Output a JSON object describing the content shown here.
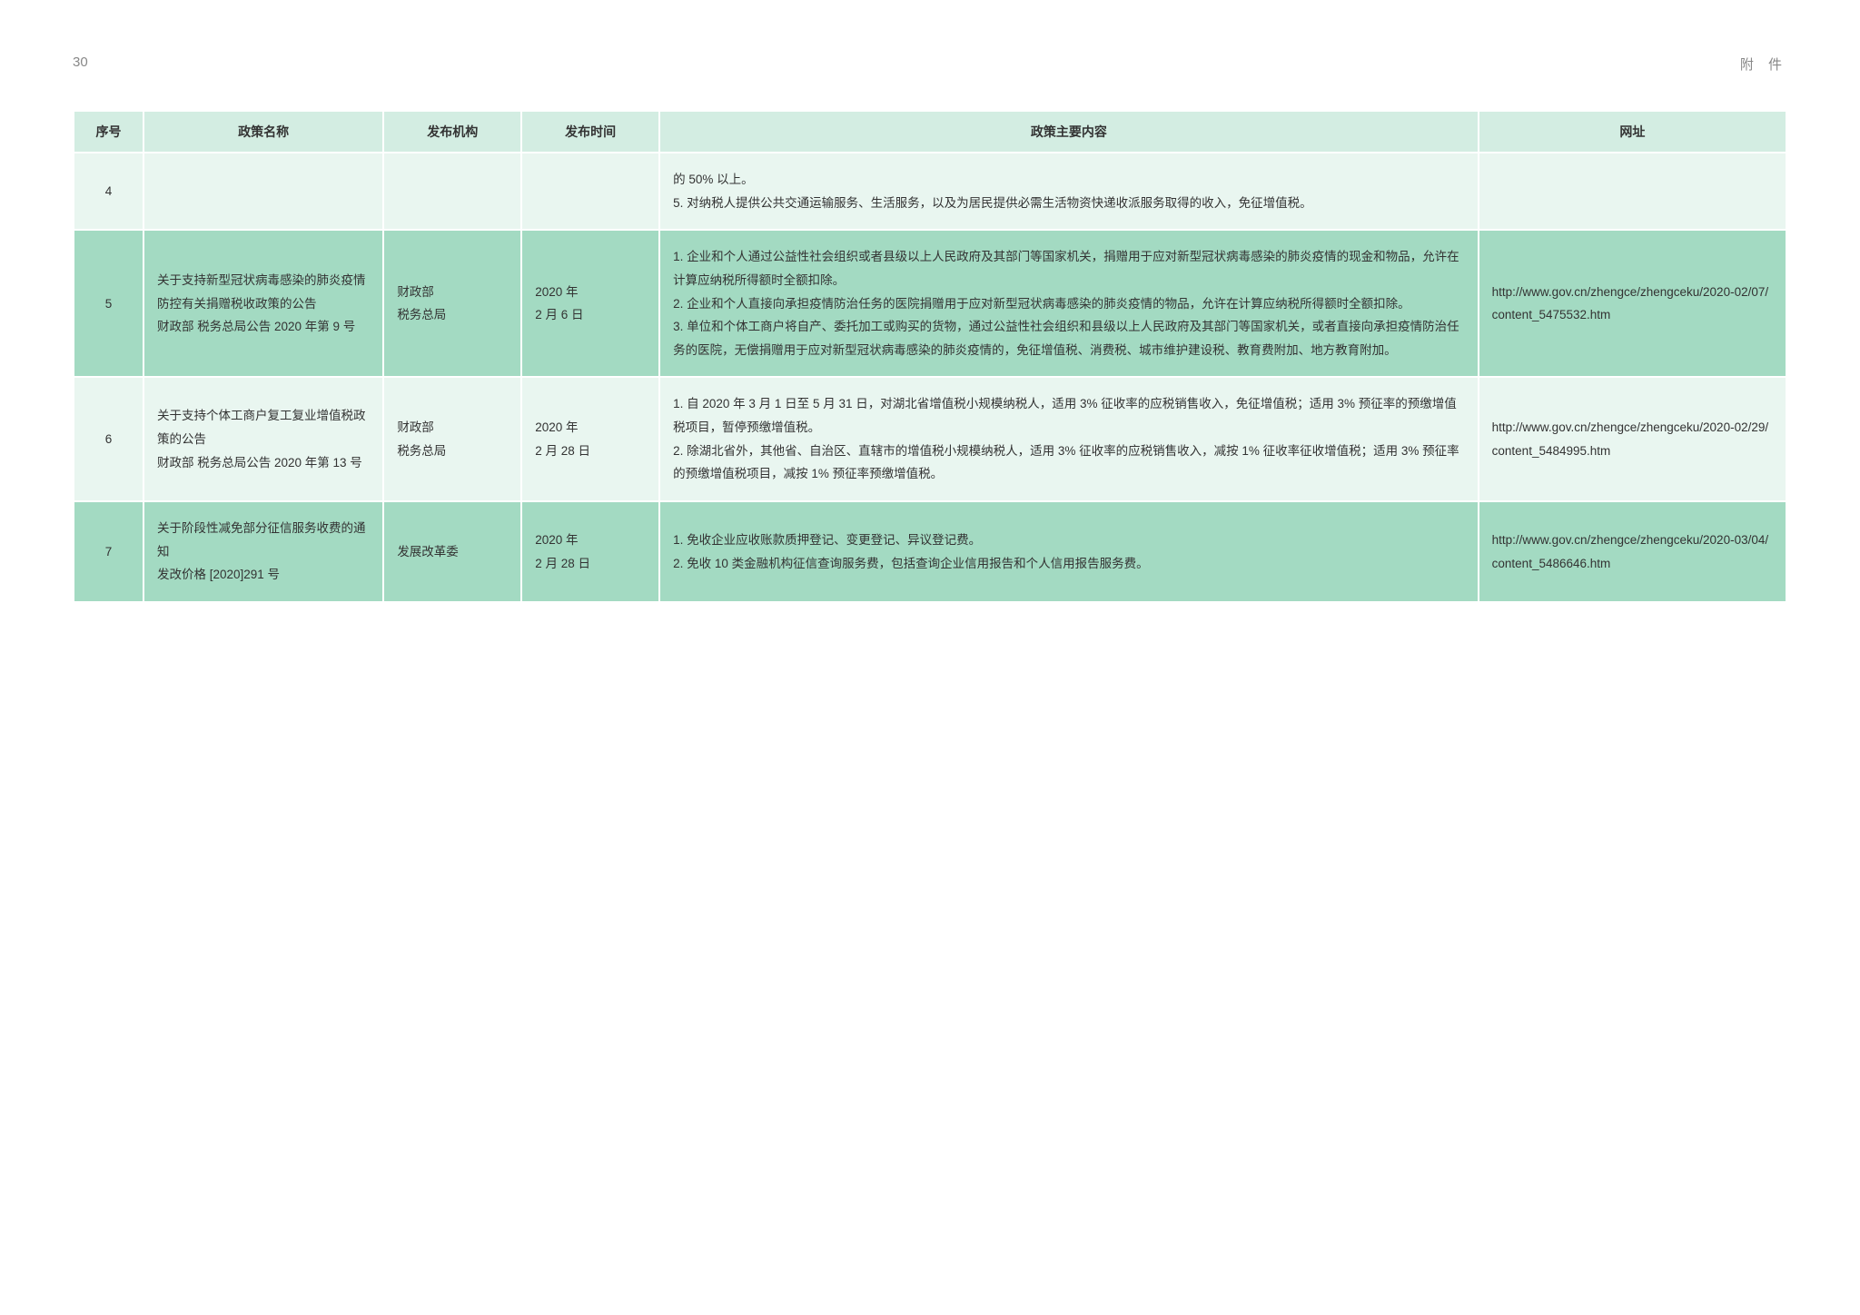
{
  "page_number": "30",
  "appendix_label": "附 件",
  "headers": {
    "seq": "序号",
    "name": "政策名称",
    "agency": "发布机构",
    "date": "发布时间",
    "content": "政策主要内容",
    "url": "网址"
  },
  "rows": [
    {
      "seq": "4",
      "name": "",
      "agency": "",
      "date": "",
      "content": "的 50% 以上。\n5. 对纳税人提供公共交通运输服务、生活服务，以及为居民提供必需生活物资快递收派服务取得的收入，免征增值税。",
      "url": ""
    },
    {
      "seq": "5",
      "name": "关于支持新型冠状病毒感染的肺炎疫情防控有关捐赠税收政策的公告\n财政部 税务总局公告 2020 年第 9 号",
      "agency": "财政部\n税务总局",
      "date": "2020 年\n2 月 6 日",
      "content": "1. 企业和个人通过公益性社会组织或者县级以上人民政府及其部门等国家机关，捐赠用于应对新型冠状病毒感染的肺炎疫情的现金和物品，允许在计算应纳税所得额时全额扣除。\n2. 企业和个人直接向承担疫情防治任务的医院捐赠用于应对新型冠状病毒感染的肺炎疫情的物品，允许在计算应纳税所得额时全额扣除。\n3. 单位和个体工商户将自产、委托加工或购买的货物，通过公益性社会组织和县级以上人民政府及其部门等国家机关，或者直接向承担疫情防治任务的医院，无偿捐赠用于应对新型冠状病毒感染的肺炎疫情的，免征增值税、消费税、城市维护建设税、教育费附加、地方教育附加。",
      "url": "http://www.gov.cn/zhengce/zhengceku/2020-02/07/content_5475532.htm"
    },
    {
      "seq": "6",
      "name": "关于支持个体工商户复工复业增值税政策的公告\n财政部 税务总局公告 2020 年第 13 号",
      "agency": "财政部\n税务总局",
      "date": "2020 年\n2 月 28 日",
      "content": "1. 自 2020 年 3 月 1 日至 5 月 31 日，对湖北省增值税小规模纳税人，适用 3% 征收率的应税销售收入，免征增值税；适用 3% 预征率的预缴增值税项目，暂停预缴增值税。\n2. 除湖北省外，其他省、自治区、直辖市的增值税小规模纳税人，适用 3% 征收率的应税销售收入，减按 1% 征收率征收增值税；适用 3% 预征率的预缴增值税项目，减按 1% 预征率预缴增值税。",
      "url": "http://www.gov.cn/zhengce/zhengceku/2020-02/29/content_5484995.htm"
    },
    {
      "seq": "7",
      "name": "关于阶段性减免部分征信服务收费的通知\n发改价格 [2020]291 号",
      "agency": "发展改革委",
      "date": "2020 年\n2 月 28 日",
      "content": "1. 免收企业应收账款质押登记、变更登记、异议登记费。\n2. 免收 10 类金融机构征信查询服务费，包括查询企业信用报告和个人信用报告服务费。",
      "url": "http://www.gov.cn/zhengce/zhengceku/2020-03/04/content_5486646.htm"
    }
  ],
  "colors": {
    "header_bg": "#d3ede2",
    "row_odd_bg": "#e9f6f0",
    "row_even_bg": "#a3dac2",
    "text": "#333333",
    "page_header": "#888888"
  }
}
